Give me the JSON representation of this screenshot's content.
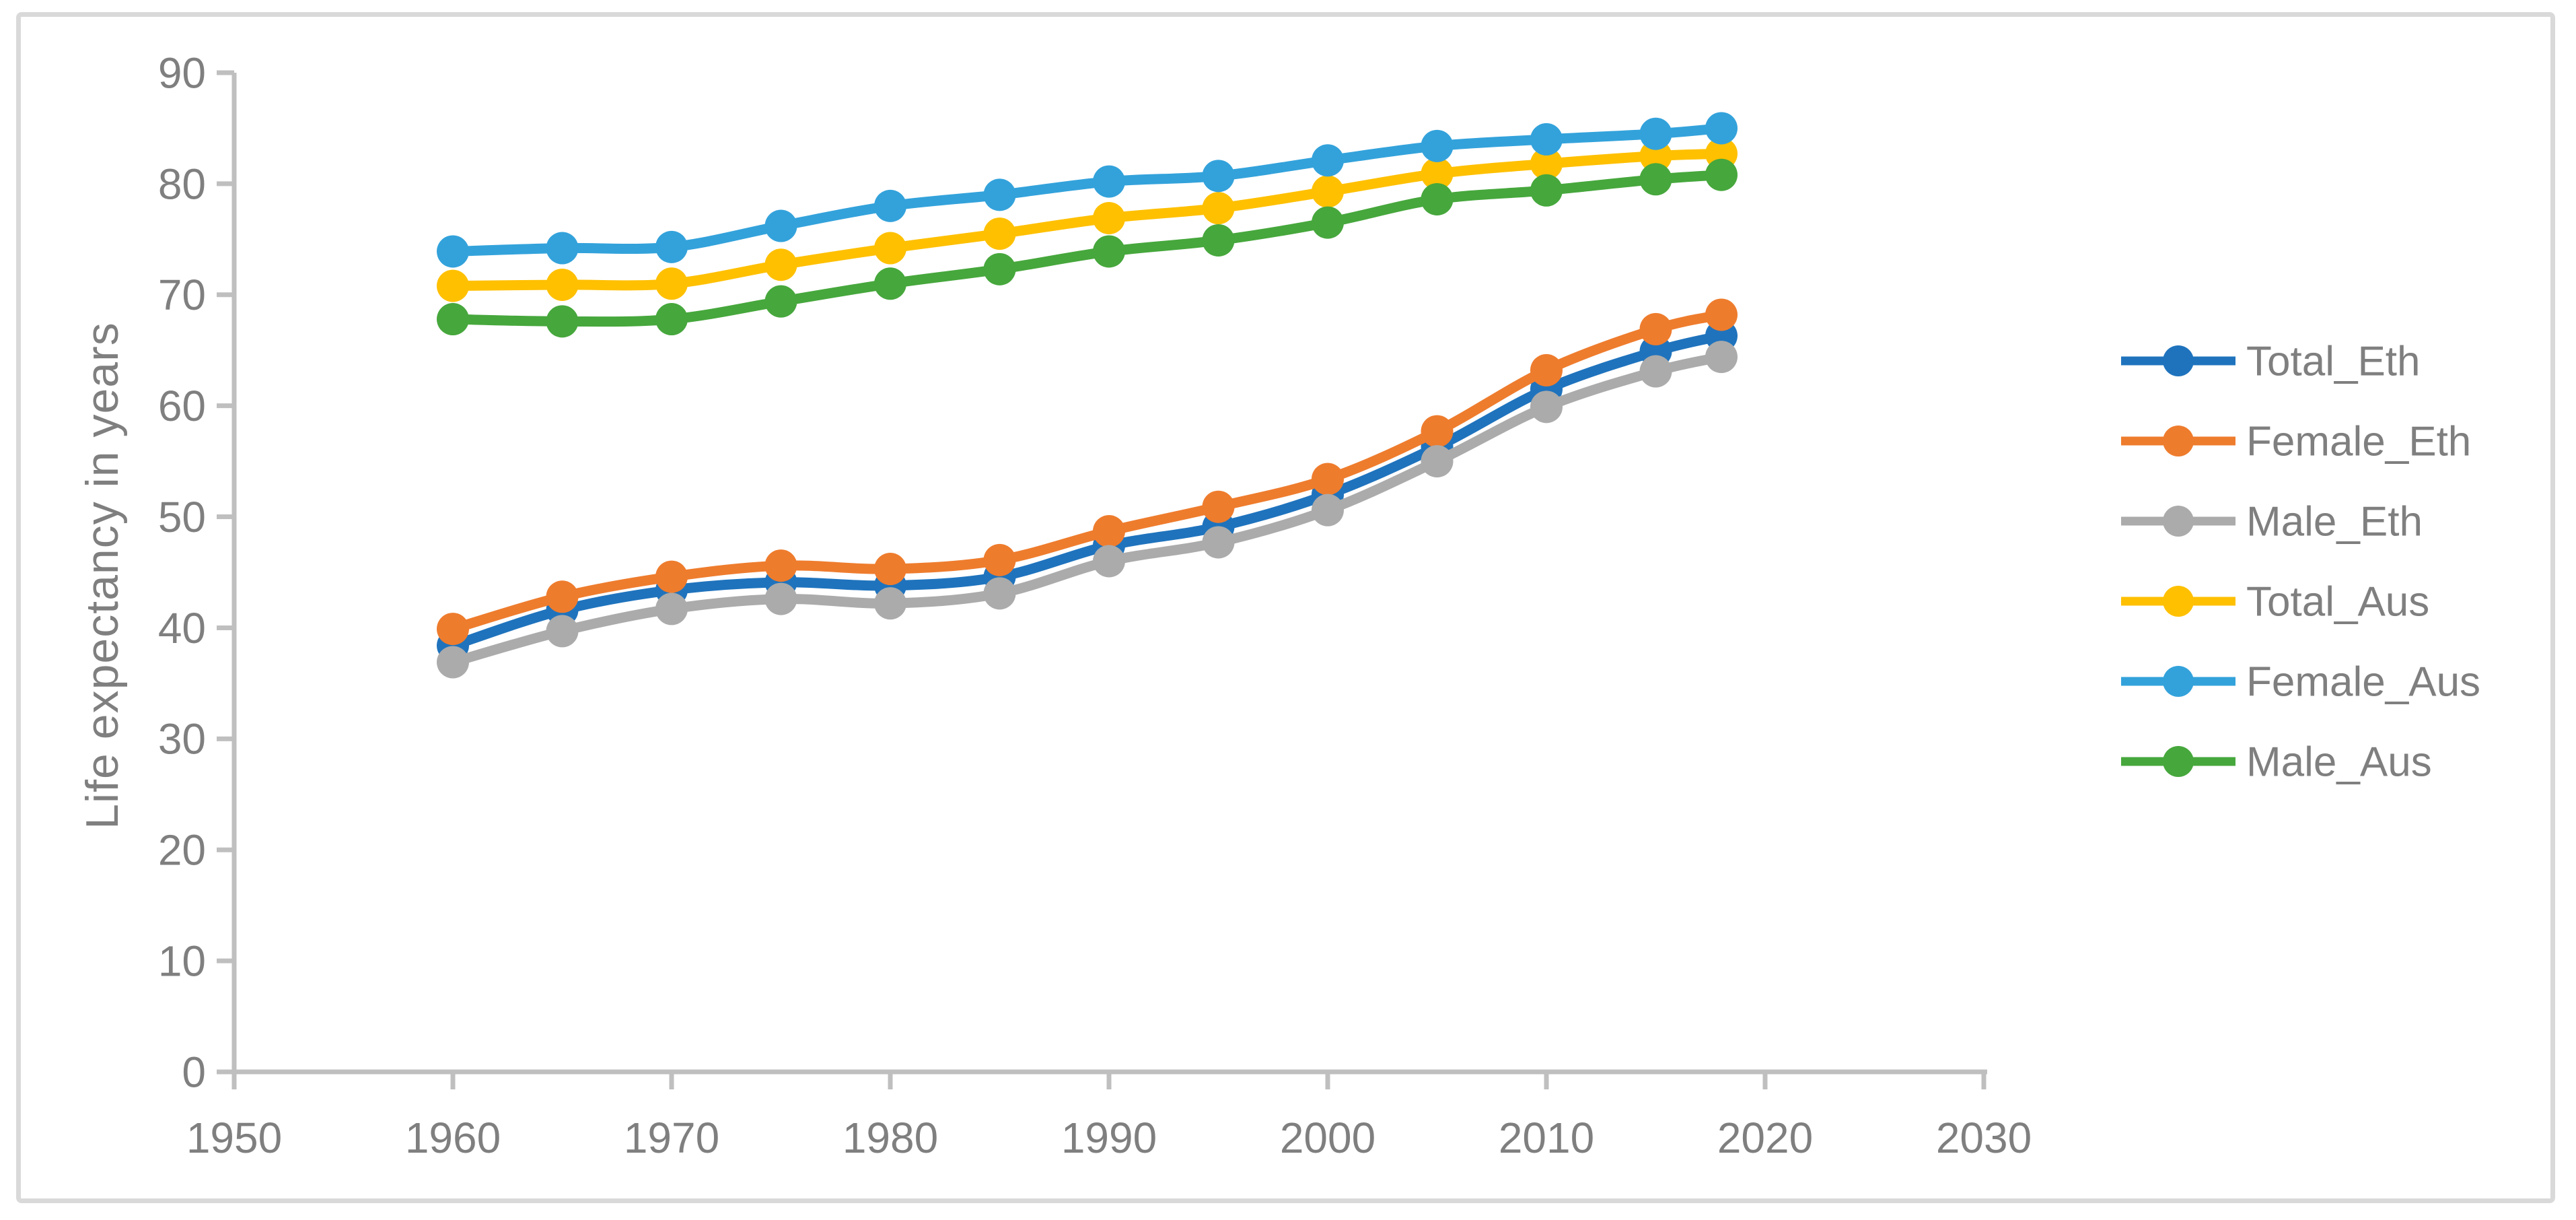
{
  "figure": {
    "border_color": "#D9D9D9",
    "background_color": "#FFFFFF"
  },
  "chart_data": {
    "type": "line",
    "title": "",
    "xlabel": "",
    "ylabel": "Life expectancy in years",
    "xlim": [
      1950,
      2030
    ],
    "ylim": [
      0,
      90
    ],
    "x_ticks": [
      1950,
      1960,
      1970,
      1980,
      1990,
      2000,
      2010,
      2020,
      2030
    ],
    "y_ticks": [
      0,
      10,
      20,
      30,
      40,
      50,
      60,
      70,
      80,
      90
    ],
    "grid": false,
    "legend_position": "right",
    "axis_color": "#BFBFBF",
    "tick_label_color": "#7F7F7F",
    "legend_text_color": "#7F7F7F",
    "marker": "circle",
    "smooth_lines": true,
    "x": [
      1960,
      1965,
      1970,
      1975,
      1980,
      1985,
      1990,
      1995,
      2000,
      2005,
      2010,
      2015,
      2018
    ],
    "series": [
      {
        "name": "Total_Eth",
        "color": "#1F73BD",
        "values": [
          38.4,
          41.6,
          43.4,
          44.1,
          43.8,
          44.6,
          47.4,
          49.1,
          52.0,
          56.3,
          61.5,
          64.9,
          66.3
        ]
      },
      {
        "name": "Female_Eth",
        "color": "#EE7C2D",
        "values": [
          39.9,
          42.8,
          44.6,
          45.6,
          45.3,
          46.1,
          48.7,
          50.9,
          53.4,
          57.7,
          63.2,
          66.9,
          68.2
        ]
      },
      {
        "name": "Male_Eth",
        "color": "#ABABAB",
        "values": [
          36.9,
          39.7,
          41.7,
          42.6,
          42.2,
          43.1,
          46.0,
          47.7,
          50.6,
          55.0,
          59.9,
          63.1,
          64.4
        ]
      },
      {
        "name": "Total_Aus",
        "color": "#FFC000",
        "values": [
          70.8,
          70.9,
          71.0,
          72.7,
          74.2,
          75.5,
          76.9,
          77.8,
          79.3,
          80.9,
          81.8,
          82.5,
          82.7
        ]
      },
      {
        "name": "Female_Aus",
        "color": "#33A2DB",
        "values": [
          73.9,
          74.2,
          74.3,
          76.2,
          78.0,
          79.0,
          80.2,
          80.7,
          82.1,
          83.4,
          84.0,
          84.5,
          85.0
        ]
      },
      {
        "name": "Male_Aus",
        "color": "#46A73C",
        "values": [
          67.8,
          67.6,
          67.8,
          69.4,
          71.0,
          72.3,
          73.9,
          74.9,
          76.5,
          78.6,
          79.4,
          80.4,
          80.8
        ]
      }
    ]
  }
}
